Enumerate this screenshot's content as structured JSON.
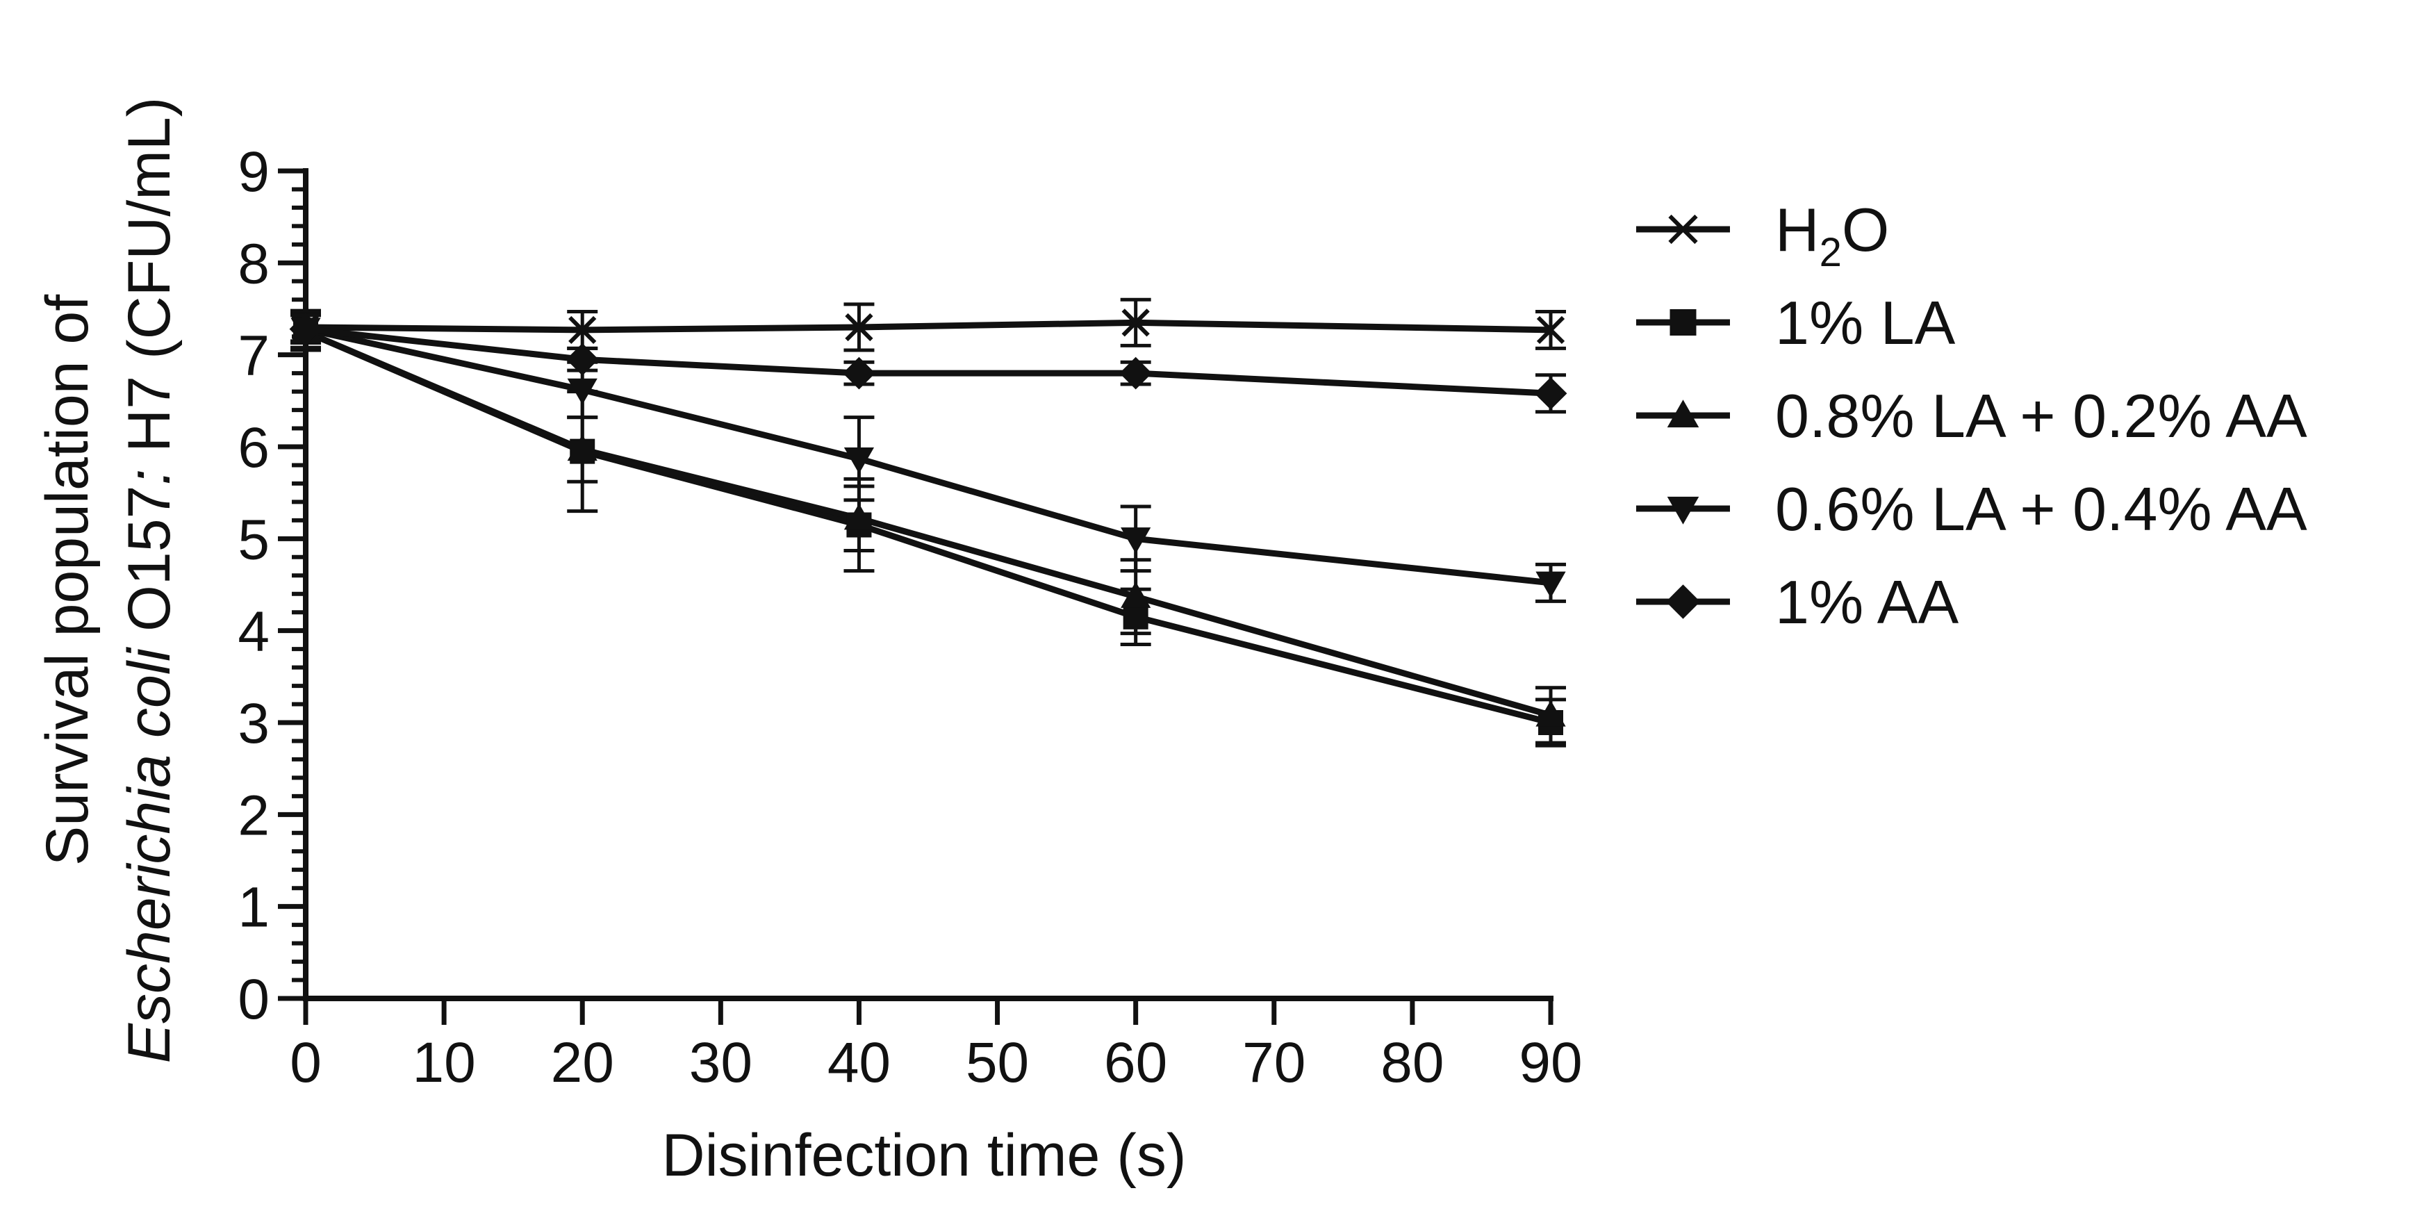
{
  "chart_data": {
    "type": "line",
    "title": "",
    "xlabel": "Disinfection time (s)",
    "ylabel_parts": {
      "line1": "Survival population of",
      "genus": "Escherichia coli",
      "strain": " O157",
      "strain_italic": ":",
      "rest": " H7 (CFU/mL)"
    },
    "categories": [
      "0",
      "20",
      "40",
      "60",
      "90"
    ],
    "x_ticks": [
      "0",
      "10",
      "20",
      "30",
      "40",
      "50",
      "60",
      "70",
      "80",
      "90"
    ],
    "y_ticks": [
      "0",
      "1",
      "2",
      "3",
      "4",
      "5",
      "6",
      "7",
      "8",
      "9"
    ],
    "ylim": [
      0,
      9
    ],
    "series": [
      {
        "name": "H2O",
        "label_main": "H",
        "label_sub": "2",
        "label_tail": "O",
        "marker": "x",
        "values": [
          7.3,
          7.27,
          7.3,
          7.35,
          7.27
        ],
        "errors": [
          0.15,
          0.2,
          0.25,
          0.25,
          0.2
        ]
      },
      {
        "name": "1% LA",
        "label_main": "1% LA",
        "marker": "square",
        "values": [
          7.25,
          5.95,
          5.15,
          4.15,
          3.0
        ],
        "errors": [
          0.2,
          0.65,
          0.5,
          0.3,
          0.25
        ]
      },
      {
        "name": "0.8% LA + 0.2% AA",
        "label_main": "0.8% LA + 0.2% AA",
        "marker": "triangle-up",
        "values": [
          7.25,
          5.97,
          5.22,
          4.37,
          3.08
        ],
        "errors": [
          0.2,
          0.35,
          0.35,
          0.4,
          0.3
        ]
      },
      {
        "name": "0.6% LA + 0.4% AA",
        "label_main": "0.6% LA + 0.4% AA",
        "marker": "triangle-down",
        "values": [
          7.28,
          6.62,
          5.87,
          5.0,
          4.52
        ],
        "errors": [
          0.2,
          0.3,
          0.45,
          0.35,
          0.2
        ]
      },
      {
        "name": "1% AA",
        "label_main": "1% AA",
        "marker": "diamond",
        "values": [
          7.28,
          6.95,
          6.8,
          6.8,
          6.58
        ],
        "errors": [
          0.15,
          0.12,
          0.12,
          0.12,
          0.2
        ]
      }
    ]
  }
}
